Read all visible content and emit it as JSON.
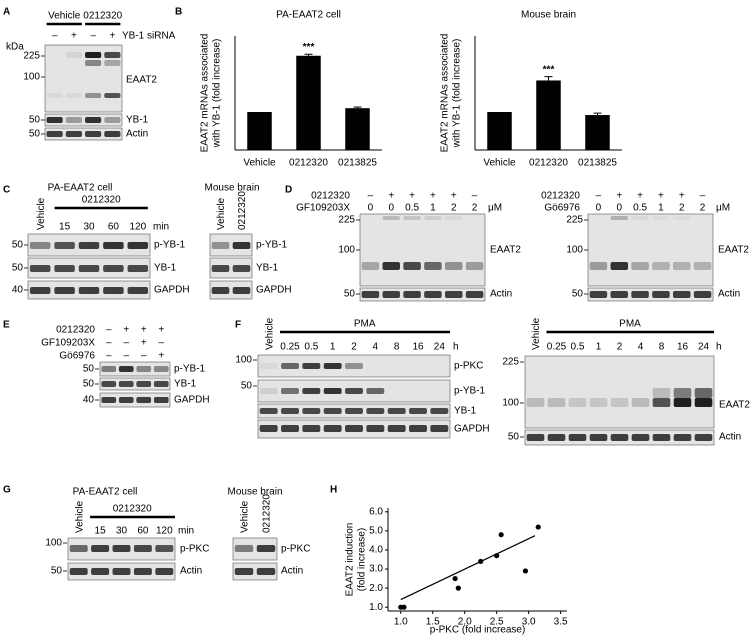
{
  "panel_labels": [
    "A",
    "B",
    "C",
    "D",
    "E",
    "F",
    "G",
    "H"
  ],
  "A": {
    "groups": [
      "Vehicle",
      "0212320"
    ],
    "row_label": "YB-1 siRNA",
    "signs": [
      "–",
      "+",
      "–",
      "+"
    ],
    "kda": "kDa",
    "markers": [
      "225",
      "100",
      "50",
      "50"
    ],
    "bands": [
      "EAAT2",
      "YB-1",
      "Actin"
    ]
  },
  "C": {
    "left": {
      "title": "PA-EAAT2 cell",
      "vehicle": "Vehicle",
      "treatment": "0212320",
      "times": [
        "15",
        "30",
        "60",
        "120"
      ],
      "unit": "min",
      "markers": [
        "50",
        "50",
        "40"
      ],
      "bands": [
        "p-YB-1",
        "YB-1",
        "GAPDH"
      ]
    },
    "right": {
      "title": "Mouse brain",
      "lanes": [
        "Vehicle",
        "0212320"
      ],
      "bands": [
        "p-YB-1",
        "YB-1",
        "GAPDH"
      ]
    }
  },
  "D": {
    "left": {
      "row1": "0212320",
      "signs": [
        "–",
        "+",
        "+",
        "+",
        "+",
        "–"
      ],
      "row2": "GF109203X",
      "doses": [
        "0",
        "0",
        "0.5",
        "1",
        "2",
        "2"
      ],
      "unit": "μM",
      "markers": [
        "225",
        "100",
        "50"
      ],
      "bands": [
        "EAAT2",
        "Actin"
      ]
    },
    "right": {
      "row1": "0212320",
      "signs": [
        "–",
        "+",
        "+",
        "+",
        "+",
        "–"
      ],
      "row2": "Gö6976",
      "doses": [
        "0",
        "0",
        "0.5",
        "1",
        "2",
        "2"
      ],
      "unit": "μM",
      "markers": [
        "225",
        "100",
        "50"
      ],
      "bands": [
        "EAAT2",
        "Actin"
      ]
    }
  },
  "E": {
    "rows": [
      {
        "name": "0212320",
        "signs": [
          "–",
          "+",
          "+",
          "+"
        ]
      },
      {
        "name": "GF109203X",
        "signs": [
          "–",
          "–",
          "+",
          "–"
        ]
      },
      {
        "name": "Gö6976",
        "signs": [
          "–",
          "–",
          "–",
          "+"
        ]
      }
    ],
    "markers": [
      "50",
      "50",
      "40"
    ],
    "bands": [
      "p-YB-1",
      "YB-1",
      "GAPDH"
    ]
  },
  "F": {
    "left": {
      "vehicle": "Vehicle",
      "treatment": "PMA",
      "times": [
        "0.25",
        "0.5",
        "1",
        "2",
        "4",
        "8",
        "16",
        "24"
      ],
      "unit": "h",
      "markers": [
        "100",
        "50"
      ],
      "bands": [
        "p-PKC",
        "p-YB-1",
        "YB-1",
        "GAPDH"
      ]
    },
    "right": {
      "vehicle": "Vehicle",
      "treatment": "PMA",
      "times": [
        "0.25",
        "0.5",
        "1",
        "2",
        "4",
        "8",
        "16",
        "24"
      ],
      "unit": "h",
      "markers": [
        "225",
        "100",
        "50"
      ],
      "bands": [
        "EAAT2",
        "Actin"
      ]
    }
  },
  "G": {
    "left": {
      "title": "PA-EAAT2 cell",
      "vehicle": "Vehicle",
      "treatment": "0212320",
      "times": [
        "15",
        "30",
        "60",
        "120"
      ],
      "unit": "min",
      "markers": [
        "100",
        "50"
      ],
      "bands": [
        "p-PKC",
        "Actin"
      ]
    },
    "right": {
      "title": "Mouse brain",
      "lanes": [
        "Vehicle",
        "0212320"
      ],
      "bands": [
        "p-PKC",
        "Actin"
      ]
    }
  },
  "chart_data": [
    {
      "type": "bar",
      "title": "PA-EAAT2 cell",
      "ylabel": [
        "EAAT2 mRNAs associated",
        "with YB-1 (fold increase)"
      ],
      "categories": [
        "Vehicle",
        "0212320",
        "0213825"
      ],
      "values": [
        1,
        2.48,
        1.1
      ],
      "errors": [
        null,
        0.04,
        0.03
      ],
      "significance": [
        null,
        "***",
        null
      ],
      "color": "#000000",
      "ylim": [
        0,
        3
      ]
    },
    {
      "type": "bar",
      "title": "Mouse brain",
      "ylabel": [
        "EAAT2 mRNAs associated",
        "with YB-1 (fold increase)"
      ],
      "categories": [
        "Vehicle",
        "0212320",
        "0213825"
      ],
      "values": [
        1,
        1.83,
        0.92
      ],
      "errors": [
        null,
        0.1,
        0.05
      ],
      "significance": [
        null,
        "***",
        null
      ],
      "color": "#000000",
      "ylim": [
        0,
        3
      ]
    },
    {
      "type": "scatter",
      "xlabel": "p-PKC (fold increase)",
      "ylabel": [
        "EAAT2 induction",
        "(fold increase)"
      ],
      "x": [
        1.0,
        1.05,
        1.85,
        1.9,
        2.25,
        2.5,
        2.57,
        2.95,
        3.15
      ],
      "values": [
        1.0,
        1.0,
        2.5,
        2.0,
        3.4,
        3.7,
        4.8,
        2.9,
        5.2
      ],
      "fit": {
        "x": [
          1.0,
          3.1
        ],
        "y": [
          1.4,
          4.75
        ]
      },
      "color": "#000000",
      "xlim": [
        0.8,
        3.6
      ],
      "ylim": [
        0.8,
        6.2
      ],
      "xticks": [
        {
          "value": 1,
          "label": "1.0"
        },
        {
          "value": 1.5,
          "label": "1.5"
        },
        {
          "value": 2,
          "label": "2.0"
        },
        {
          "value": 2.5,
          "label": "2.5"
        },
        {
          "value": 3,
          "label": "3.0"
        },
        {
          "value": 3.5,
          "label": "3.5"
        }
      ],
      "yticks": [
        {
          "value": 1,
          "label": "1.0"
        },
        {
          "value": 2,
          "label": "2.0"
        },
        {
          "value": 3,
          "label": "3.0"
        },
        {
          "value": 4,
          "label": "4.0"
        },
        {
          "value": 5,
          "label": "5.0"
        },
        {
          "value": 6,
          "label": "6.0"
        }
      ]
    }
  ]
}
